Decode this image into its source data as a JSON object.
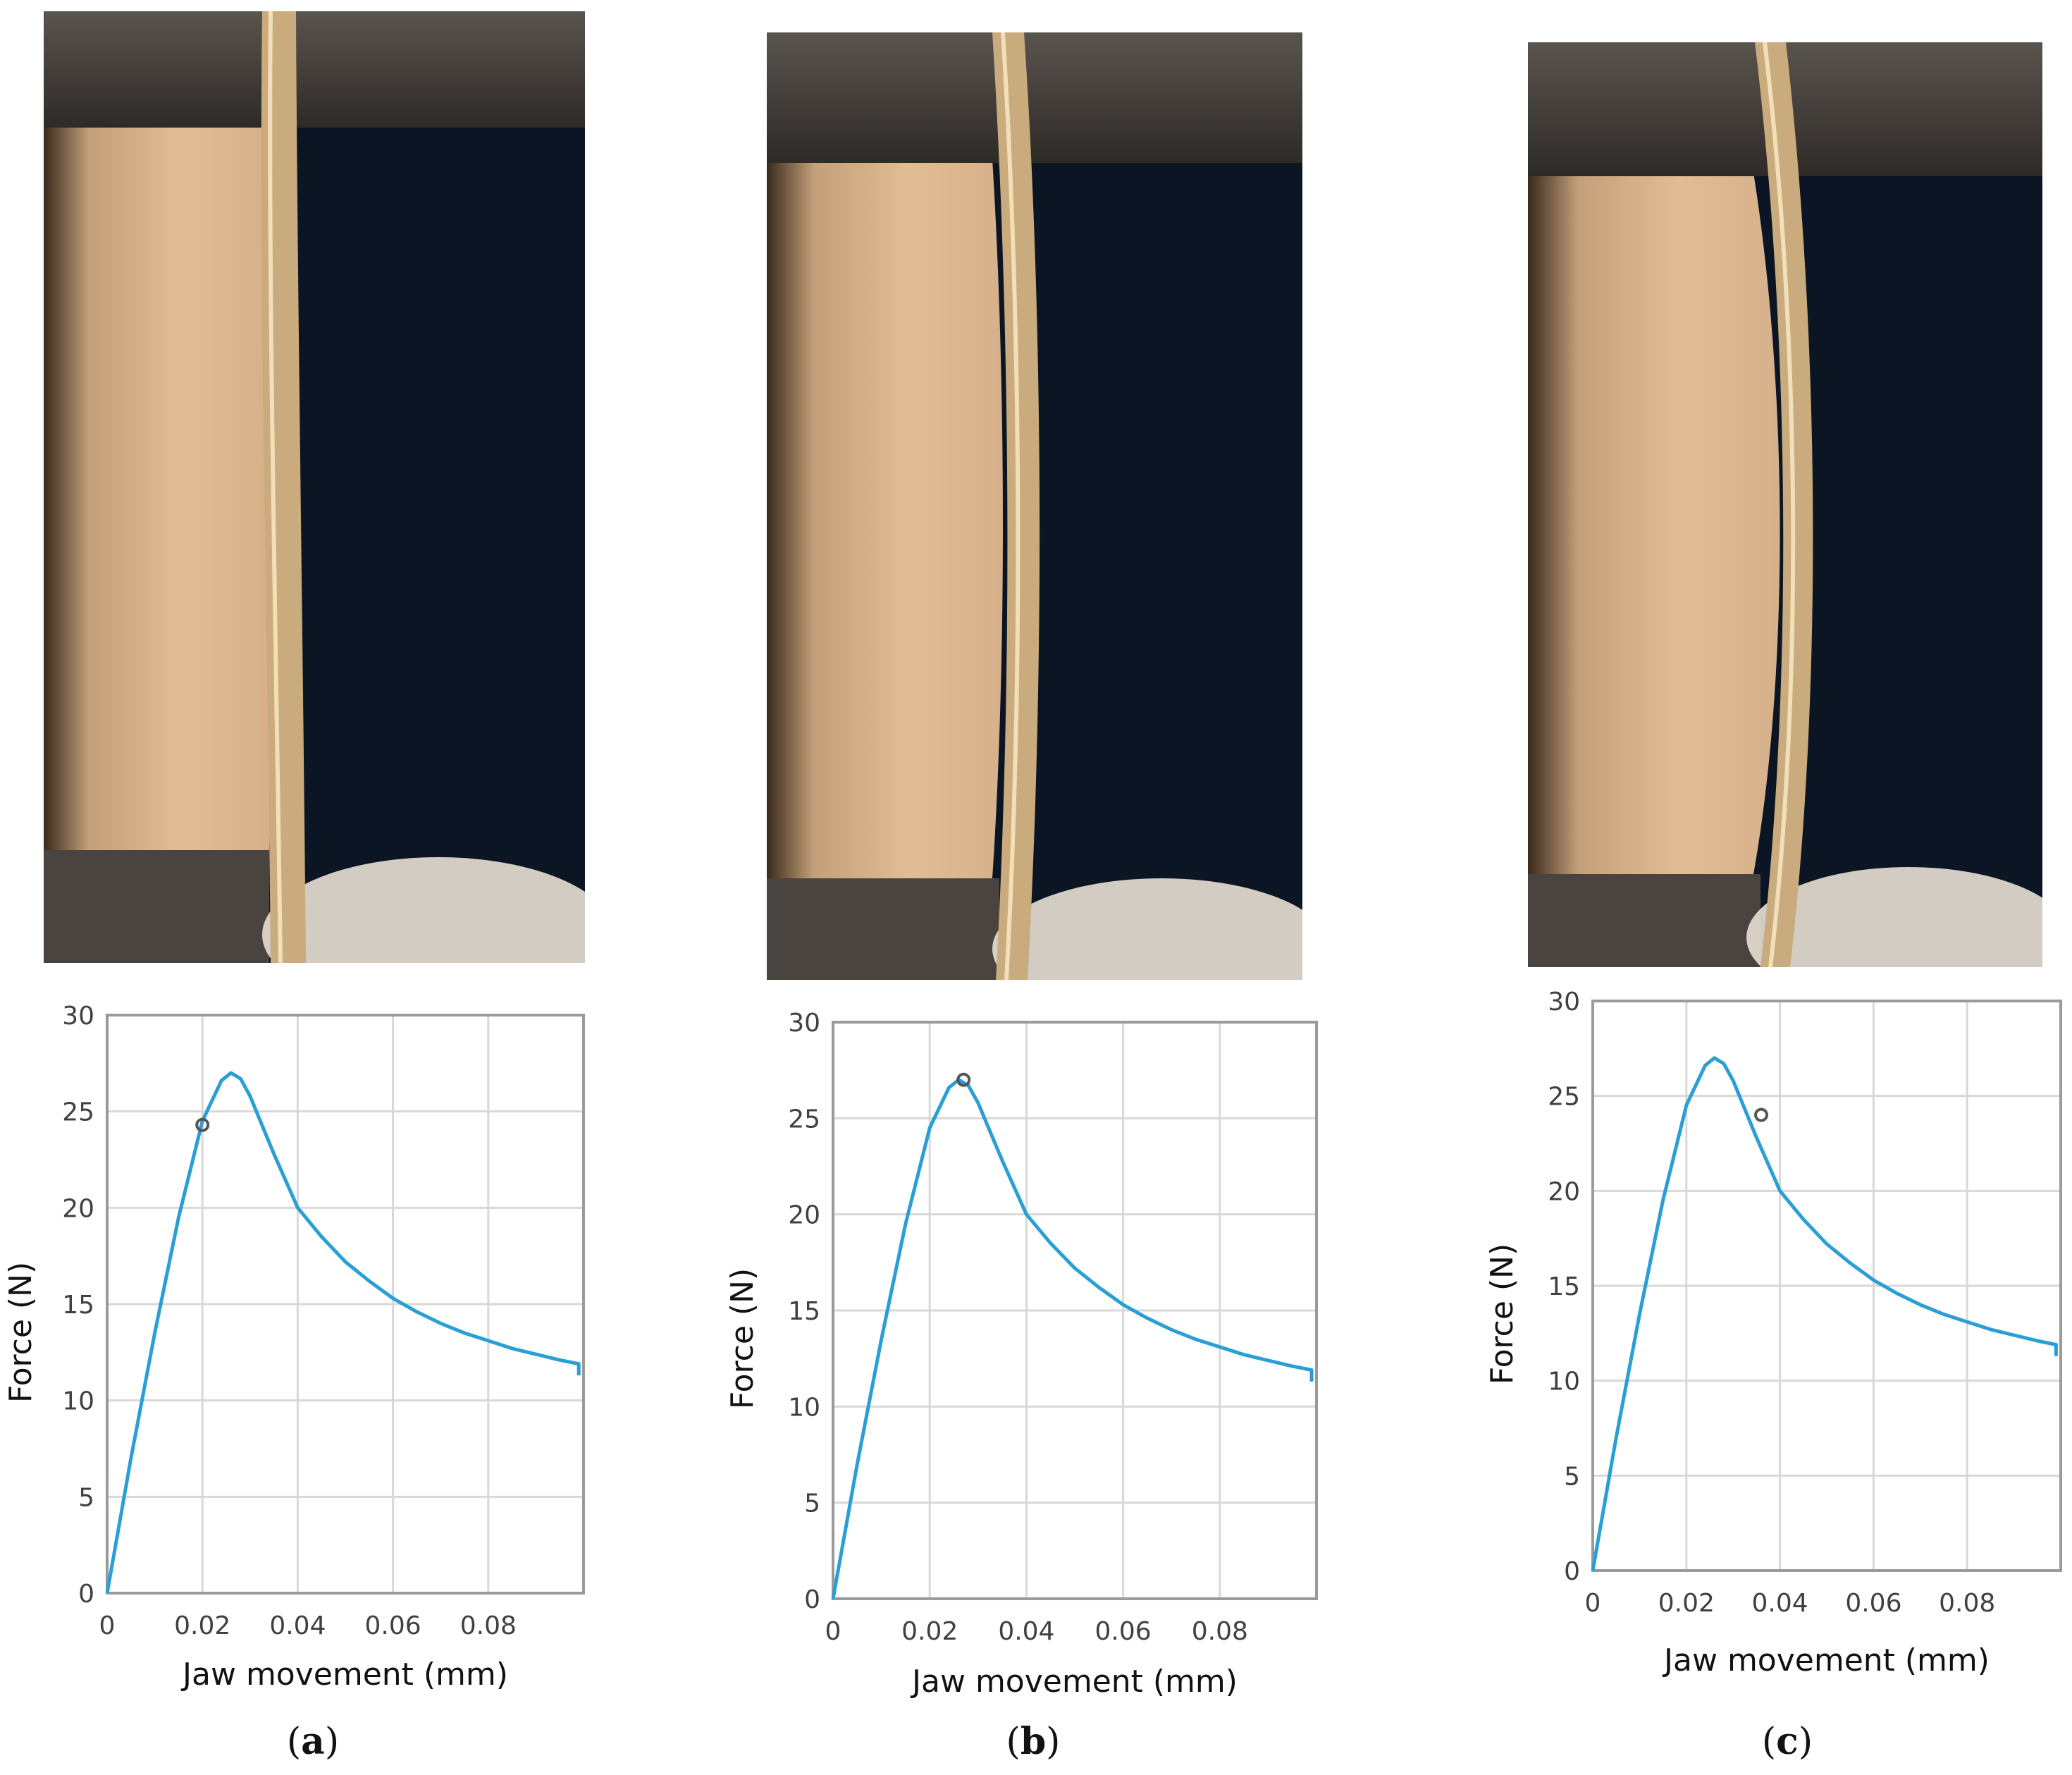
{
  "colors": {
    "curve": "#2a9fd6",
    "grid": "#d8d8d8",
    "frame": "#9a9a9a",
    "marker": "#555555",
    "gel": "#dcb48c",
    "background_dark": "#0b1524",
    "fixture": "#4a4440",
    "fibers": "#e8e0d4"
  },
  "panels": [
    {
      "caption_open": "(",
      "caption_letter": "a",
      "caption_close": ")"
    },
    {
      "caption_open": "(",
      "caption_letter": "b",
      "caption_close": ")"
    },
    {
      "caption_open": "(",
      "caption_letter": "c",
      "caption_close": ")"
    }
  ],
  "chart_data": [
    {
      "type": "line",
      "xlabel": "Jaw movement (mm)",
      "ylabel": "Force (N)",
      "xlim": [
        0,
        0.1
      ],
      "ylim": [
        0,
        30
      ],
      "xticks": [
        0,
        0.02,
        0.04,
        0.06,
        0.08
      ],
      "xtick_labels": [
        "0",
        "0.02",
        "0.04",
        "0.06",
        "0.08"
      ],
      "yticks": [
        0,
        5,
        10,
        15,
        20,
        25,
        30
      ],
      "ytick_labels": [
        "0",
        "5",
        "10",
        "15",
        "20",
        "25",
        "30"
      ],
      "grid": true,
      "series": [
        {
          "x": [
            0,
            0.005,
            0.01,
            0.015,
            0.02,
            0.024,
            0.026,
            0.028,
            0.03,
            0.035,
            0.04,
            0.045,
            0.05,
            0.055,
            0.06,
            0.065,
            0.07,
            0.075,
            0.08,
            0.085,
            0.09,
            0.095,
            0.099,
            0.099
          ],
          "y": [
            0,
            7,
            13.5,
            19.5,
            24.5,
            26.6,
            27,
            26.7,
            25.8,
            22.8,
            20,
            18.5,
            17.2,
            16.2,
            15.3,
            14.6,
            14,
            13.5,
            13.1,
            12.7,
            12.4,
            12.1,
            11.9,
            11.3
          ]
        }
      ],
      "marker": {
        "x": 0.02,
        "y": 24.3
      }
    },
    {
      "type": "line",
      "xlabel": "Jaw movement (mm)",
      "ylabel": "Force (N)",
      "xlim": [
        0,
        0.1
      ],
      "ylim": [
        0,
        30
      ],
      "xticks": [
        0,
        0.02,
        0.04,
        0.06,
        0.08
      ],
      "xtick_labels": [
        "0",
        "0.02",
        "0.04",
        "0.06",
        "0.08"
      ],
      "yticks": [
        0,
        5,
        10,
        15,
        20,
        25,
        30
      ],
      "ytick_labels": [
        "0",
        "5",
        "10",
        "15",
        "20",
        "25",
        "30"
      ],
      "grid": true,
      "series": [
        {
          "x": [
            0,
            0.005,
            0.01,
            0.015,
            0.02,
            0.024,
            0.026,
            0.028,
            0.03,
            0.035,
            0.04,
            0.045,
            0.05,
            0.055,
            0.06,
            0.065,
            0.07,
            0.075,
            0.08,
            0.085,
            0.09,
            0.095,
            0.099,
            0.099
          ],
          "y": [
            0,
            7,
            13.5,
            19.5,
            24.5,
            26.6,
            27,
            26.7,
            25.8,
            22.8,
            20,
            18.5,
            17.2,
            16.2,
            15.3,
            14.6,
            14,
            13.5,
            13.1,
            12.7,
            12.4,
            12.1,
            11.9,
            11.3
          ]
        }
      ],
      "marker": {
        "x": 0.027,
        "y": 27
      }
    },
    {
      "type": "line",
      "xlabel": "Jaw movement (mm)",
      "ylabel": "Force (N)",
      "xlim": [
        0,
        0.1
      ],
      "ylim": [
        0,
        30
      ],
      "xticks": [
        0,
        0.02,
        0.04,
        0.06,
        0.08
      ],
      "xtick_labels": [
        "0",
        "0.02",
        "0.04",
        "0.06",
        "0.08"
      ],
      "yticks": [
        0,
        5,
        10,
        15,
        20,
        25,
        30
      ],
      "ytick_labels": [
        "0",
        "5",
        "10",
        "15",
        "20",
        "25",
        "30"
      ],
      "grid": true,
      "series": [
        {
          "x": [
            0,
            0.005,
            0.01,
            0.015,
            0.02,
            0.024,
            0.026,
            0.028,
            0.03,
            0.035,
            0.04,
            0.045,
            0.05,
            0.055,
            0.06,
            0.065,
            0.07,
            0.075,
            0.08,
            0.085,
            0.09,
            0.095,
            0.099,
            0.099
          ],
          "y": [
            0,
            7,
            13.5,
            19.5,
            24.5,
            26.6,
            27,
            26.7,
            25.8,
            22.8,
            20,
            18.5,
            17.2,
            16.2,
            15.3,
            14.6,
            14,
            13.5,
            13.1,
            12.7,
            12.4,
            12.1,
            11.9,
            11.3
          ]
        }
      ],
      "marker": {
        "x": 0.036,
        "y": 24
      }
    }
  ]
}
